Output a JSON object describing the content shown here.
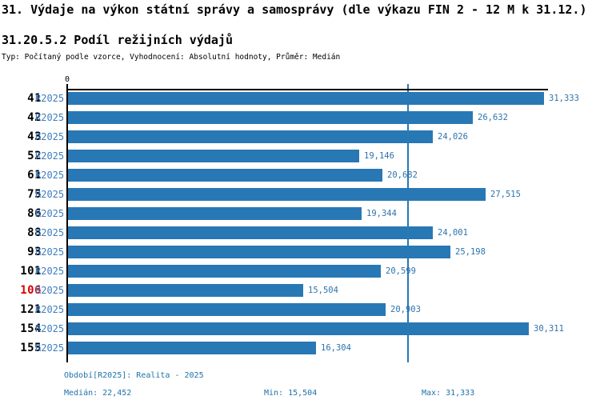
{
  "header": {
    "title": "31. Výdaje na výkon státní správy a samosprávy (dle výkazu FIN 2 - 12 M k 31.12.)",
    "subtitle": "31.20.5.2 Podíl režijních výdajů",
    "meta": "Typ: Počítaný podle vzorce, Vyhodnocení: Absolutní hodnoty, Průměr: Medián"
  },
  "chart_data": {
    "type": "bar",
    "orientation": "horizontal",
    "x_axis": {
      "zero_label": "0",
      "max": 31650,
      "gridlines": false
    },
    "series_name": "R2025",
    "rows": [
      {
        "category": "41",
        "period": "R2025",
        "value": 31333,
        "value_label": "31,333",
        "highlight": false
      },
      {
        "category": "42",
        "period": "R2025",
        "value": 26632,
        "value_label": "26,632",
        "highlight": false
      },
      {
        "category": "43",
        "period": "R2025",
        "value": 24026,
        "value_label": "24,026",
        "highlight": false
      },
      {
        "category": "52",
        "period": "R2025",
        "value": 19146,
        "value_label": "19,146",
        "highlight": false
      },
      {
        "category": "61",
        "period": "R2025",
        "value": 20682,
        "value_label": "20,682",
        "highlight": false
      },
      {
        "category": "75",
        "period": "R2025",
        "value": 27515,
        "value_label": "27,515",
        "highlight": false
      },
      {
        "category": "86",
        "period": "R2025",
        "value": 19344,
        "value_label": "19,344",
        "highlight": false
      },
      {
        "category": "88",
        "period": "R2025",
        "value": 24001,
        "value_label": "24,001",
        "highlight": false
      },
      {
        "category": "93",
        "period": "R2025",
        "value": 25198,
        "value_label": "25,198",
        "highlight": false
      },
      {
        "category": "101",
        "period": "R2025",
        "value": 20599,
        "value_label": "20,599",
        "highlight": false
      },
      {
        "category": "106",
        "period": "R2025",
        "value": 15504,
        "value_label": "15,504",
        "highlight": true
      },
      {
        "category": "121",
        "period": "R2025",
        "value": 20903,
        "value_label": "20,903",
        "highlight": false
      },
      {
        "category": "154",
        "period": "R2025",
        "value": 30311,
        "value_label": "30,311",
        "highlight": false
      },
      {
        "category": "155",
        "period": "R2025",
        "value": 16304,
        "value_label": "16,304",
        "highlight": false
      }
    ],
    "median_line": {
      "value": 22452
    },
    "stats": {
      "median": 22452,
      "min": 15504,
      "max": 31333
    },
    "colors": {
      "bar": "#2878b5",
      "median_line": "#2878b5",
      "period_text": "#3f7dc0",
      "value_text": "#2e73ad",
      "footer_text": "#1f72a8",
      "highlight_text": "#dd0000",
      "axis": "#000000"
    }
  },
  "footer": {
    "period": "Období[R2025]: Realita - 2025",
    "median": "Medián: 22,452",
    "min": "Min: 15,504",
    "max": "Max: 31,333"
  }
}
